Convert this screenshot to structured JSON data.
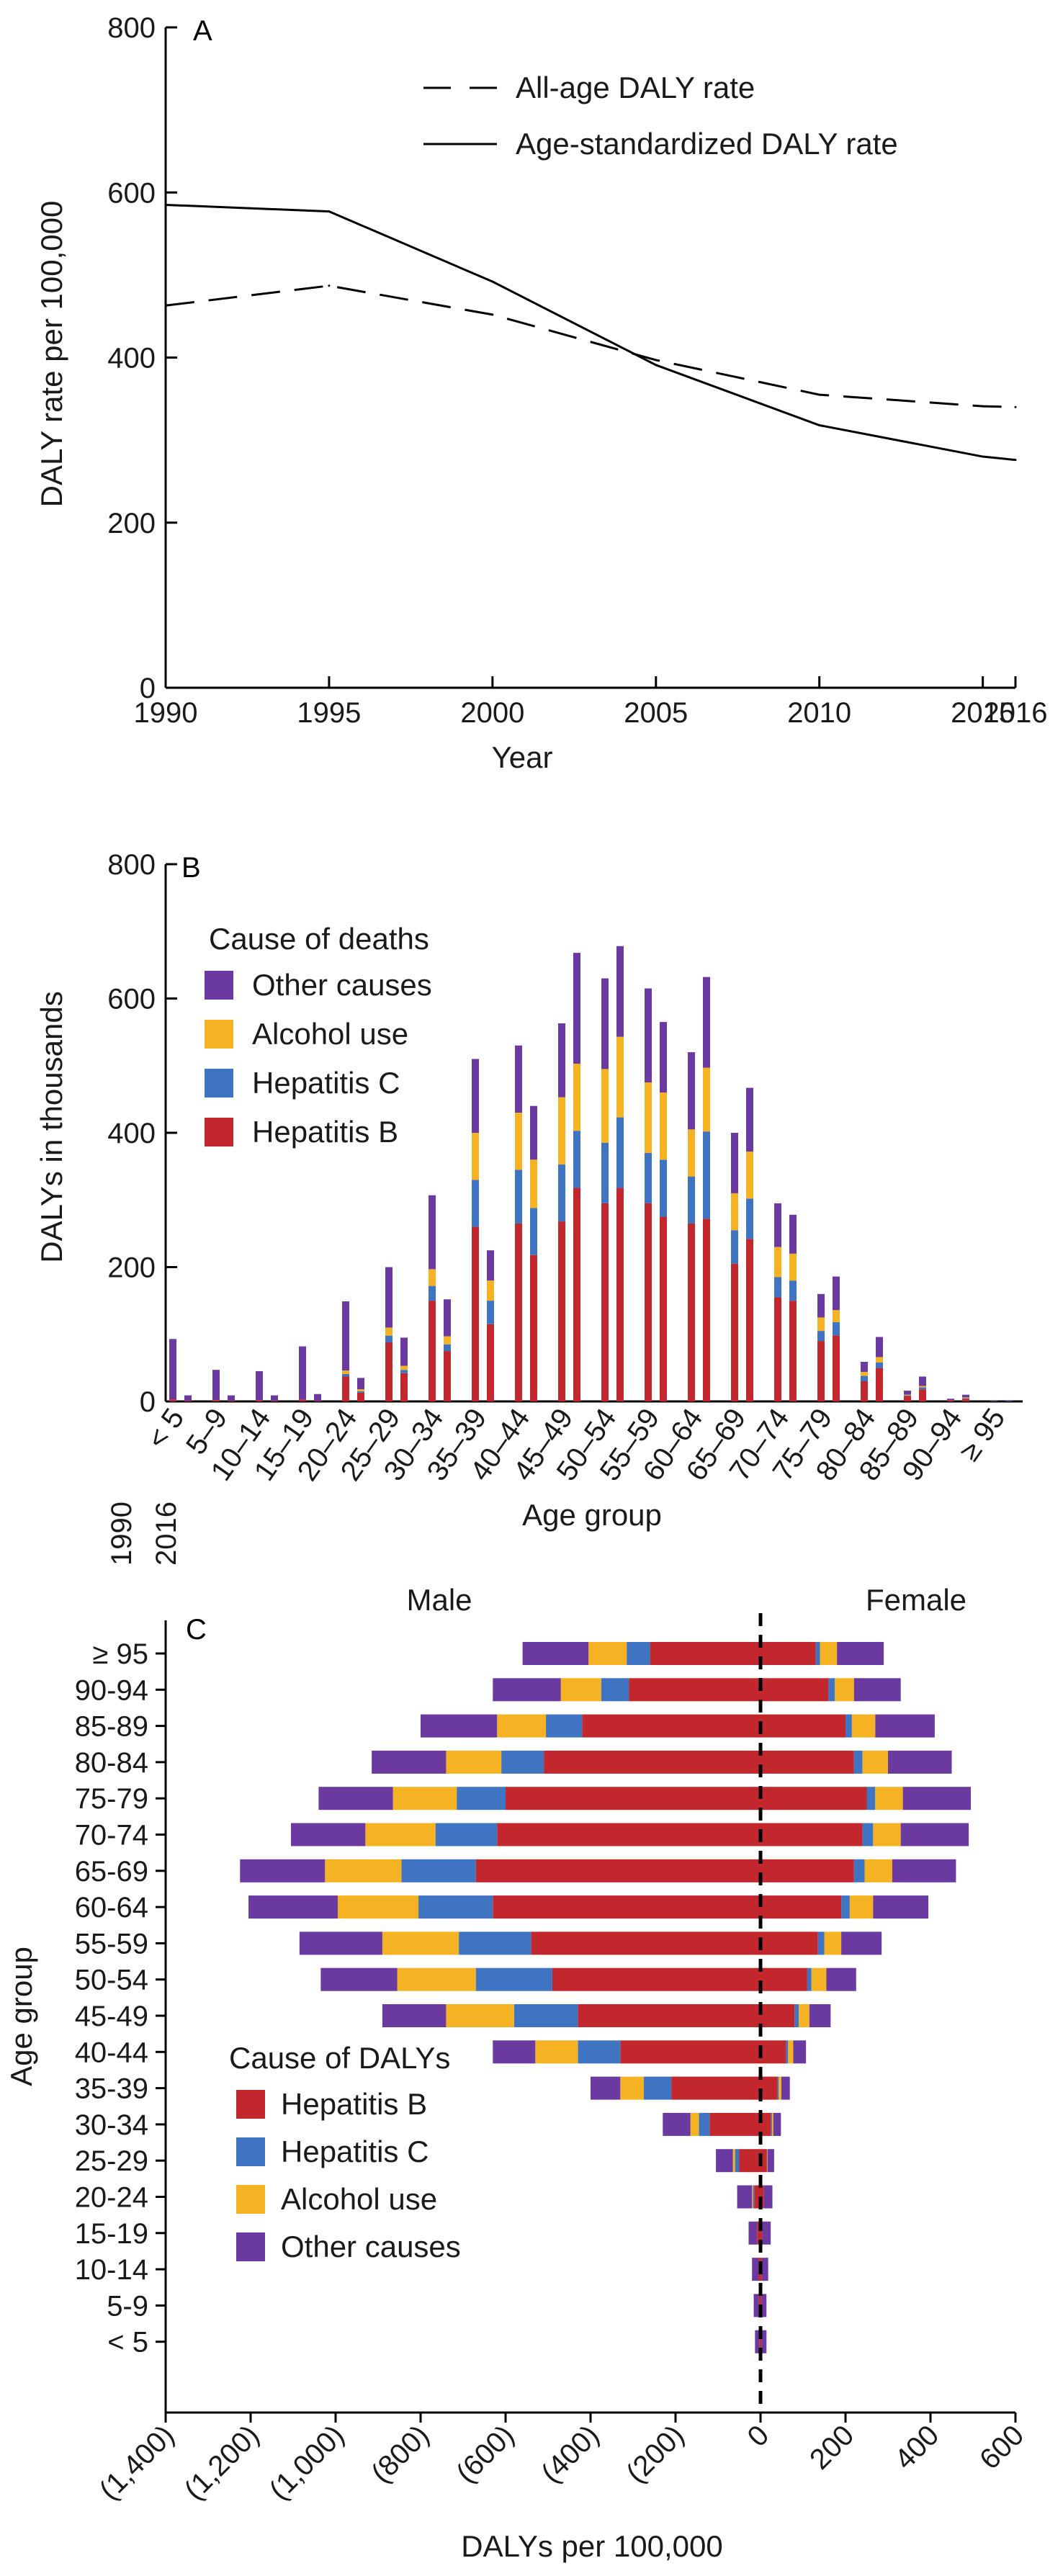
{
  "colors": {
    "hepatitis_b": "#c1272d",
    "hepatitis_c": "#3f74c2",
    "alcohol_use": "#f5b324",
    "other_causes": "#6a3aa0",
    "axis": "#000000"
  },
  "chart_data": [
    {
      "type": "line",
      "panel_label": "A",
      "xlabel": "Year",
      "ylabel": "DALY rate per 100,000",
      "xlim": [
        1990,
        2016
      ],
      "ylim": [
        0,
        800
      ],
      "x_ticks": [
        "1990",
        "1995",
        "2000",
        "2005",
        "2010",
        "2015",
        "2016"
      ],
      "x_tick_values": [
        1990,
        1995,
        2000,
        2005,
        2010,
        2015,
        2016
      ],
      "y_ticks": [
        "0",
        "200",
        "400",
        "600",
        "800"
      ],
      "y_tick_values": [
        0,
        200,
        400,
        600,
        800
      ],
      "x": [
        1990,
        1995,
        2000,
        2005,
        2010,
        2015,
        2016
      ],
      "series": [
        {
          "name": "All-age DALY rate",
          "style": "dashed",
          "values": [
            463,
            487,
            452,
            397,
            355,
            341,
            340
          ]
        },
        {
          "name": "Age-standardized DALY rate",
          "style": "solid",
          "values": [
            585,
            577,
            492,
            391,
            318,
            280,
            276
          ]
        }
      ],
      "legend_position": "top-right",
      "grid": false
    },
    {
      "type": "bar",
      "stacked": true,
      "panel_label": "B",
      "xlabel": "Age group",
      "ylabel": "DALYs in thousands",
      "ylim": [
        0,
        800
      ],
      "y_ticks": [
        "0",
        "200",
        "400",
        "600",
        "800"
      ],
      "y_tick_values": [
        0,
        200,
        400,
        600,
        800
      ],
      "categories": [
        "< 5",
        "5–9",
        "10–14",
        "15–19",
        "20–24",
        "25–29",
        "30–34",
        "35–39",
        "40–44",
        "45–49",
        "50–54",
        "55–59",
        "60–64",
        "65–69",
        "70–74",
        "75–79",
        "80–84",
        "85–89",
        "90–94",
        "≥ 95"
      ],
      "year_labels": [
        "1990",
        "2016"
      ],
      "legend_title": "Cause of deaths",
      "legend_position": "top-left",
      "series": [
        {
          "name": "Hepatitis B",
          "color_key": "hepatitis_b",
          "values_1990": [
            3,
            2,
            2,
            3,
            37,
            88,
            150,
            260,
            265,
            268,
            295,
            295,
            265,
            205,
            155,
            90,
            30,
            8,
            2,
            0
          ],
          "values_2016": [
            1,
            1,
            1,
            1,
            13,
            42,
            75,
            115,
            218,
            318,
            318,
            275,
            272,
            242,
            150,
            98,
            50,
            18,
            4,
            0
          ]
        },
        {
          "name": "Hepatitis C",
          "color_key": "hepatitis_c",
          "values_1990": [
            0,
            0,
            0,
            0,
            4,
            10,
            22,
            70,
            80,
            85,
            90,
            75,
            70,
            50,
            30,
            15,
            8,
            1,
            0,
            0
          ],
          "values_2016": [
            0,
            0,
            0,
            0,
            2,
            5,
            10,
            35,
            70,
            85,
            105,
            85,
            130,
            60,
            30,
            20,
            8,
            3,
            1,
            0
          ]
        },
        {
          "name": "Alcohol use",
          "color_key": "alcohol_use",
          "values_1990": [
            0,
            0,
            0,
            0,
            5,
            12,
            25,
            70,
            85,
            100,
            110,
            105,
            70,
            55,
            45,
            20,
            6,
            1,
            0,
            0
          ],
          "values_2016": [
            0,
            0,
            0,
            0,
            3,
            6,
            12,
            30,
            72,
            100,
            120,
            100,
            95,
            70,
            40,
            18,
            8,
            2,
            1,
            0
          ]
        },
        {
          "name": "Other causes",
          "color_key": "other_causes",
          "values_1990": [
            90,
            45,
            43,
            79,
            103,
            90,
            110,
            110,
            100,
            110,
            135,
            140,
            115,
            90,
            65,
            35,
            15,
            6,
            2,
            1
          ],
          "values_2016": [
            8,
            8,
            8,
            10,
            17,
            42,
            55,
            45,
            80,
            165,
            135,
            105,
            135,
            95,
            58,
            50,
            30,
            14,
            4,
            1
          ]
        }
      ],
      "grid": false
    },
    {
      "type": "bar",
      "orientation": "horizontal",
      "stacked": true,
      "panel_label": "C",
      "xlabel": "DALYs per 100,000",
      "ylabel": "Age group",
      "xlim": [
        -1400,
        600
      ],
      "x_ticks": [
        "(1,400)",
        "(1,200)",
        "(1,000)",
        "(800)",
        "(600)",
        "(400)",
        "(200)",
        "0",
        "200",
        "400",
        "600"
      ],
      "x_tick_values": [
        -1400,
        -1200,
        -1000,
        -800,
        -600,
        -400,
        -200,
        0,
        200,
        400,
        600
      ],
      "left_label": "Male",
      "right_label": "Female",
      "legend_title": "Cause of DALYs",
      "legend_position": "bottom-left",
      "categories": [
        "≥ 95",
        "90-94",
        "85-89",
        "80-84",
        "75-79",
        "70-74",
        "65-69",
        "60-64",
        "55-59",
        "50-54",
        "45-49",
        "40-44",
        "35-39",
        "30-34",
        "25-29",
        "20-24",
        "15-19",
        "10-14",
        "5-9",
        "< 5"
      ],
      "series": [
        {
          "name": "Hepatitis B",
          "color_key": "hepatitis_b",
          "male": [
            -260,
            -310,
            -420,
            -510,
            -600,
            -620,
            -670,
            -630,
            -540,
            -490,
            -430,
            -330,
            -210,
            -120,
            -50,
            -15,
            -8,
            -5,
            -4,
            -3
          ],
          "female": [
            130,
            160,
            200,
            220,
            250,
            240,
            220,
            190,
            135,
            110,
            80,
            60,
            40,
            25,
            15,
            8,
            4,
            3,
            2,
            2
          ]
        },
        {
          "name": "Hepatitis C",
          "color_key": "hepatitis_c",
          "male": [
            -55,
            -65,
            -85,
            -100,
            -115,
            -145,
            -175,
            -175,
            -170,
            -180,
            -150,
            -100,
            -65,
            -25,
            -10,
            -3,
            0,
            0,
            0,
            0
          ],
          "female": [
            10,
            15,
            15,
            20,
            20,
            25,
            25,
            20,
            15,
            10,
            10,
            5,
            3,
            2,
            1,
            0,
            0,
            0,
            0,
            0
          ]
        },
        {
          "name": "Alcohol use",
          "color_key": "alcohol_use",
          "male": [
            -90,
            -95,
            -115,
            -130,
            -150,
            -165,
            -180,
            -190,
            -180,
            -185,
            -160,
            -100,
            -55,
            -20,
            -5,
            -2,
            0,
            0,
            0,
            0
          ],
          "female": [
            40,
            45,
            55,
            60,
            65,
            65,
            65,
            55,
            40,
            35,
            25,
            12,
            6,
            3,
            1,
            0,
            0,
            0,
            0,
            0
          ]
        },
        {
          "name": "Other causes",
          "color_key": "other_causes",
          "male": [
            -155,
            -160,
            -180,
            -175,
            -175,
            -175,
            -200,
            -210,
            -195,
            -180,
            -150,
            -100,
            -70,
            -65,
            -40,
            -35,
            -20,
            -15,
            -12,
            -10
          ],
          "female": [
            110,
            110,
            140,
            150,
            160,
            160,
            150,
            130,
            95,
            70,
            50,
            30,
            20,
            18,
            15,
            20,
            20,
            15,
            12,
            12
          ]
        }
      ],
      "grid": false
    }
  ]
}
